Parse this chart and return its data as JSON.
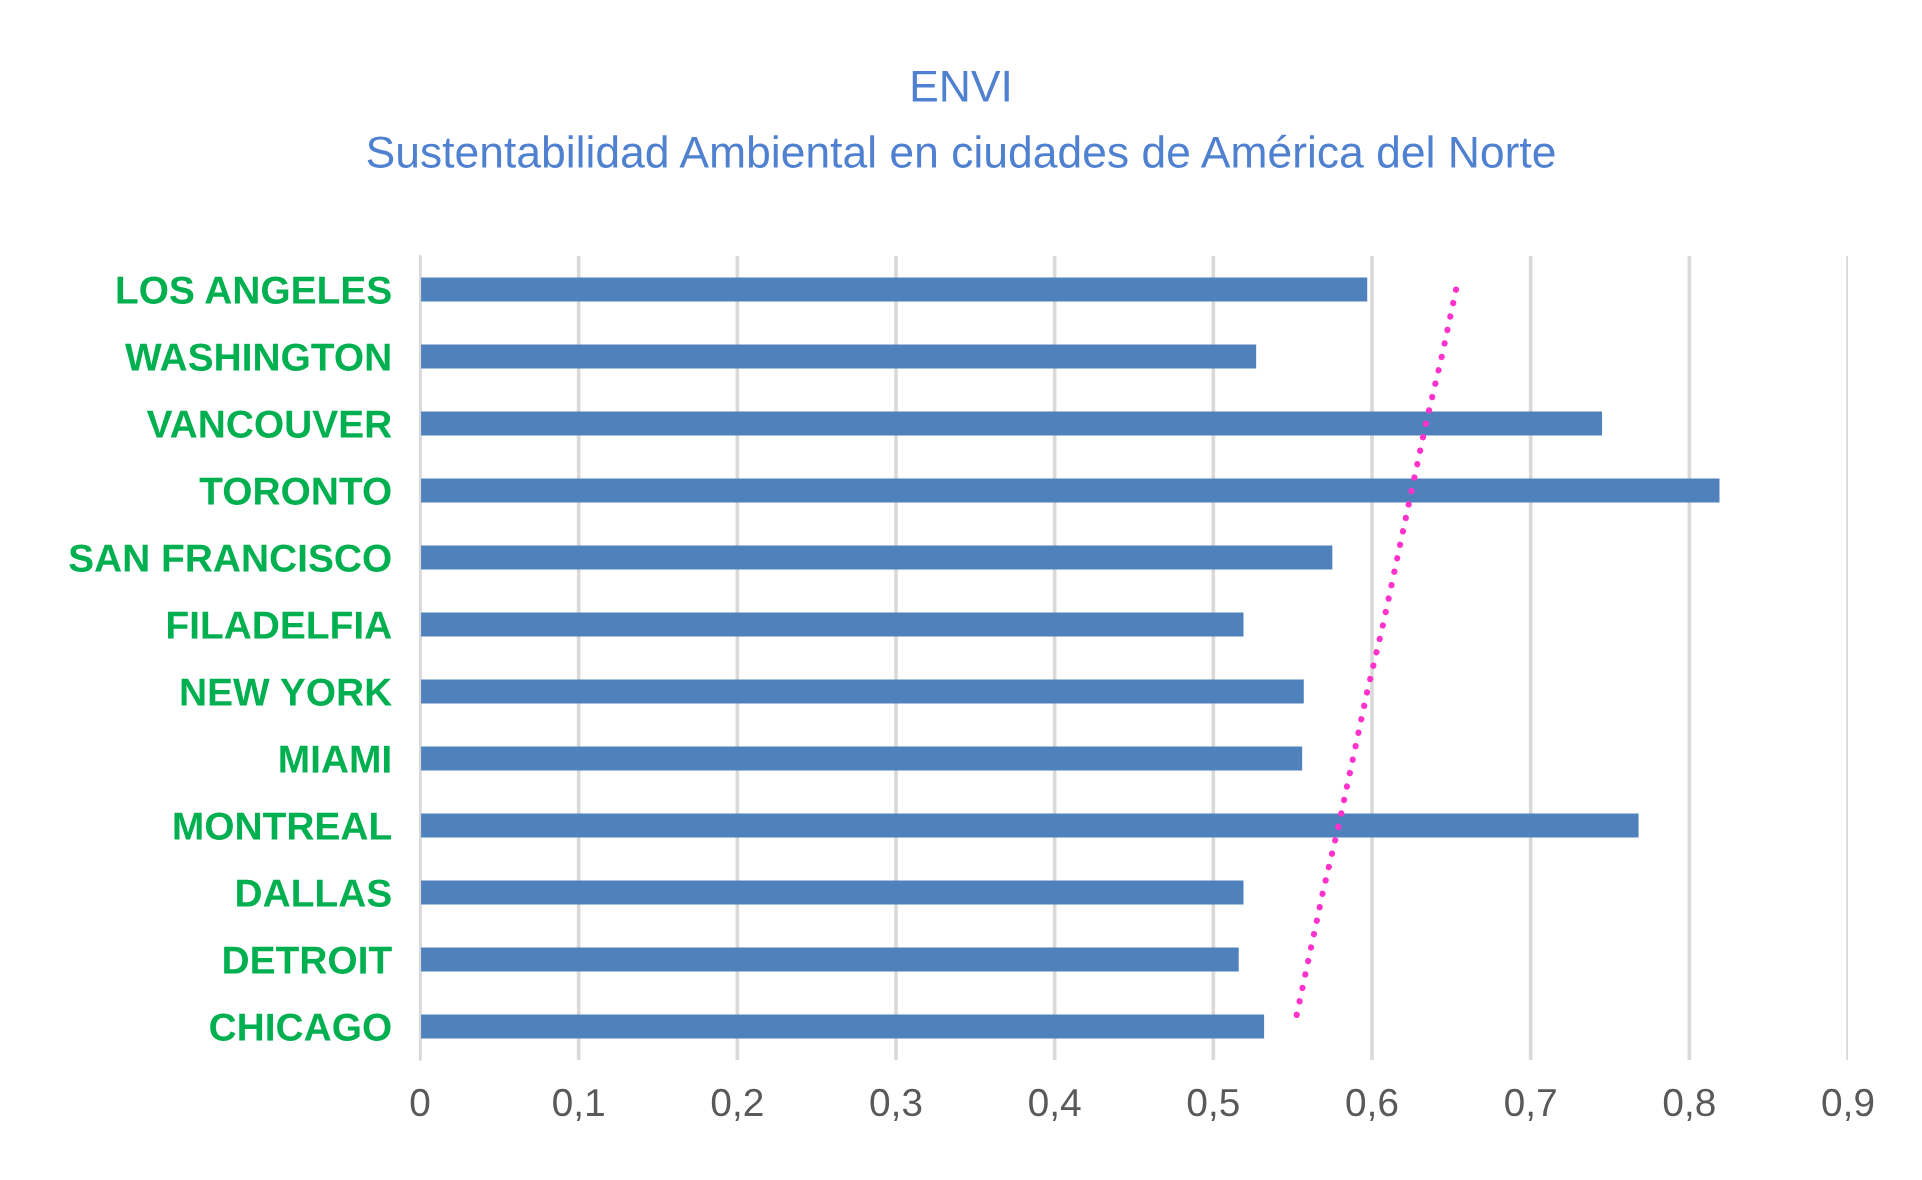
{
  "chart_data": {
    "type": "bar",
    "orientation": "horizontal",
    "title": "ENVI",
    "subtitle": "Sustentabilidad Ambiental en ciudades de América del Norte",
    "categories": [
      "LOS ANGELES",
      "WASHINGTON",
      "VANCOUVER",
      "TORONTO",
      "SAN FRANCISCO",
      "FILADELFIA",
      "NEW YORK",
      "MIAMI",
      "MONTREAL",
      "DALLAS",
      "DETROIT",
      "CHICAGO"
    ],
    "series": [
      {
        "color": "#4f81bd",
        "values": [
          0.597,
          0.527,
          0.745,
          0.819,
          0.575,
          0.519,
          0.557,
          0.556,
          0.768,
          0.519,
          0.516,
          0.532
        ]
      },
      {
        "type": "line",
        "color": "#ff33cc",
        "line_style": "dotted",
        "values": [
          0.653,
          0.644,
          0.634,
          0.625,
          0.616,
          0.607,
          0.597,
          0.588,
          0.579,
          0.569,
          0.56,
          0.551
        ]
      }
    ],
    "xlim": [
      0,
      0.9
    ],
    "xticks": [
      {
        "value": 0,
        "label": "0"
      },
      {
        "value": 0.1,
        "label": "0,1"
      },
      {
        "value": 0.2,
        "label": "0,2"
      },
      {
        "value": 0.3,
        "label": "0,3"
      },
      {
        "value": 0.4,
        "label": "0,4"
      },
      {
        "value": 0.5,
        "label": "0,5"
      },
      {
        "value": 0.6,
        "label": "0,6"
      },
      {
        "value": 0.7,
        "label": "0,7"
      },
      {
        "value": 0.8,
        "label": "0,8"
      },
      {
        "value": 0.9,
        "label": "0,9"
      }
    ],
    "grid": "x",
    "legend": false
  }
}
